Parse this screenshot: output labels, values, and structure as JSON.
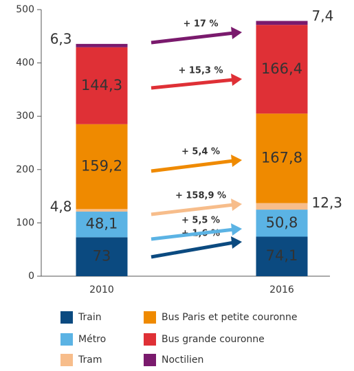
{
  "chart_data": {
    "type": "stacked_bar",
    "categories": [
      "2010",
      "2016"
    ],
    "series": [
      {
        "name": "Train",
        "color": "#0b4a80",
        "values": [
          73,
          74.1
        ],
        "value_labels": [
          "73",
          "74,1"
        ],
        "growth_label": "+ 1,6 %"
      },
      {
        "name": "Métro",
        "color": "#5bb3e4",
        "values": [
          48.1,
          50.8
        ],
        "value_labels": [
          "48,1",
          "50,8"
        ],
        "growth_label": "+ 5,5 %"
      },
      {
        "name": "Tram",
        "color": "#f7bd8b",
        "values": [
          4.8,
          12.3
        ],
        "value_labels": [
          "4,8",
          "12,3"
        ],
        "growth_label": "+ 158,9 %"
      },
      {
        "name": "Bus Paris et petite couronne",
        "color": "#ef8a00",
        "values": [
          159.2,
          167.8
        ],
        "value_labels": [
          "159,2",
          "167,8"
        ],
        "growth_label": "+ 5,4 %"
      },
      {
        "name": "Bus grande couronne",
        "color": "#df3036",
        "values": [
          144.3,
          166.4
        ],
        "value_labels": [
          "144,3",
          "166,4"
        ],
        "growth_label": "+ 15,3 %"
      },
      {
        "name": "Noctilien",
        "color": "#7a1a6d",
        "values": [
          6.3,
          7.4
        ],
        "value_labels": [
          "6,3",
          "7,4"
        ],
        "growth_label": "+ 17 %"
      }
    ],
    "ylim": [
      0,
      500
    ],
    "yticks": [
      0,
      100,
      200,
      300,
      400,
      500
    ],
    "grid": false
  }
}
